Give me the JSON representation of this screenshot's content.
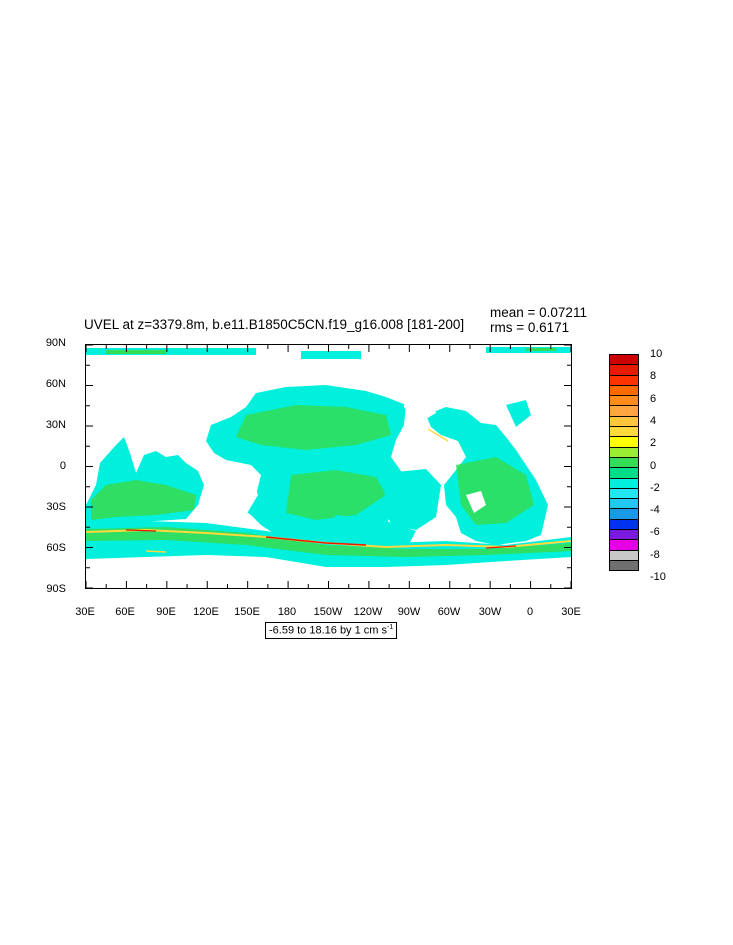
{
  "title": "UVEL at z=3379.8m, b.e11.B1850C5CN.f19_g16.008 [181-200]",
  "stats": {
    "mean": "mean = 0.07211",
    "rms": "rms = 0.6171"
  },
  "lat_ticks": [
    "90N",
    "60N",
    "30N",
    "0",
    "30S",
    "60S",
    "90S"
  ],
  "lon_ticks": [
    "30E",
    "60E",
    "90E",
    "120E",
    "150E",
    "180",
    "150W",
    "120W",
    "90W",
    "60W",
    "30W",
    "0",
    "30E"
  ],
  "range_text": "-6.59 to 18.16 by 1 cm s",
  "range_unit_exp": "-1",
  "colorbar": {
    "labels": [
      "10",
      "8",
      "6",
      "4",
      "2",
      "0",
      "-2",
      "-4",
      "-6",
      "-8",
      "-10"
    ],
    "colors": [
      "#cc0000",
      "#e61a00",
      "#ff3300",
      "#ff6a00",
      "#ff8c1a",
      "#ffa640",
      "#ffc63c",
      "#ffd93d",
      "#ffff00",
      "#99ee33",
      "#33dd55",
      "#00dd88",
      "#00f0dd",
      "#22e6f0",
      "#22c8f0",
      "#1a9ae6",
      "#0033ee",
      "#7a1adc",
      "#e600e6",
      "#c8c8c8",
      "#707070"
    ]
  },
  "map_colors": {
    "ocean_main": "#00f0dd",
    "ocean_pos": "#33dd55",
    "acc_high": "#ffd93d",
    "acc_max": "#e61a00"
  }
}
